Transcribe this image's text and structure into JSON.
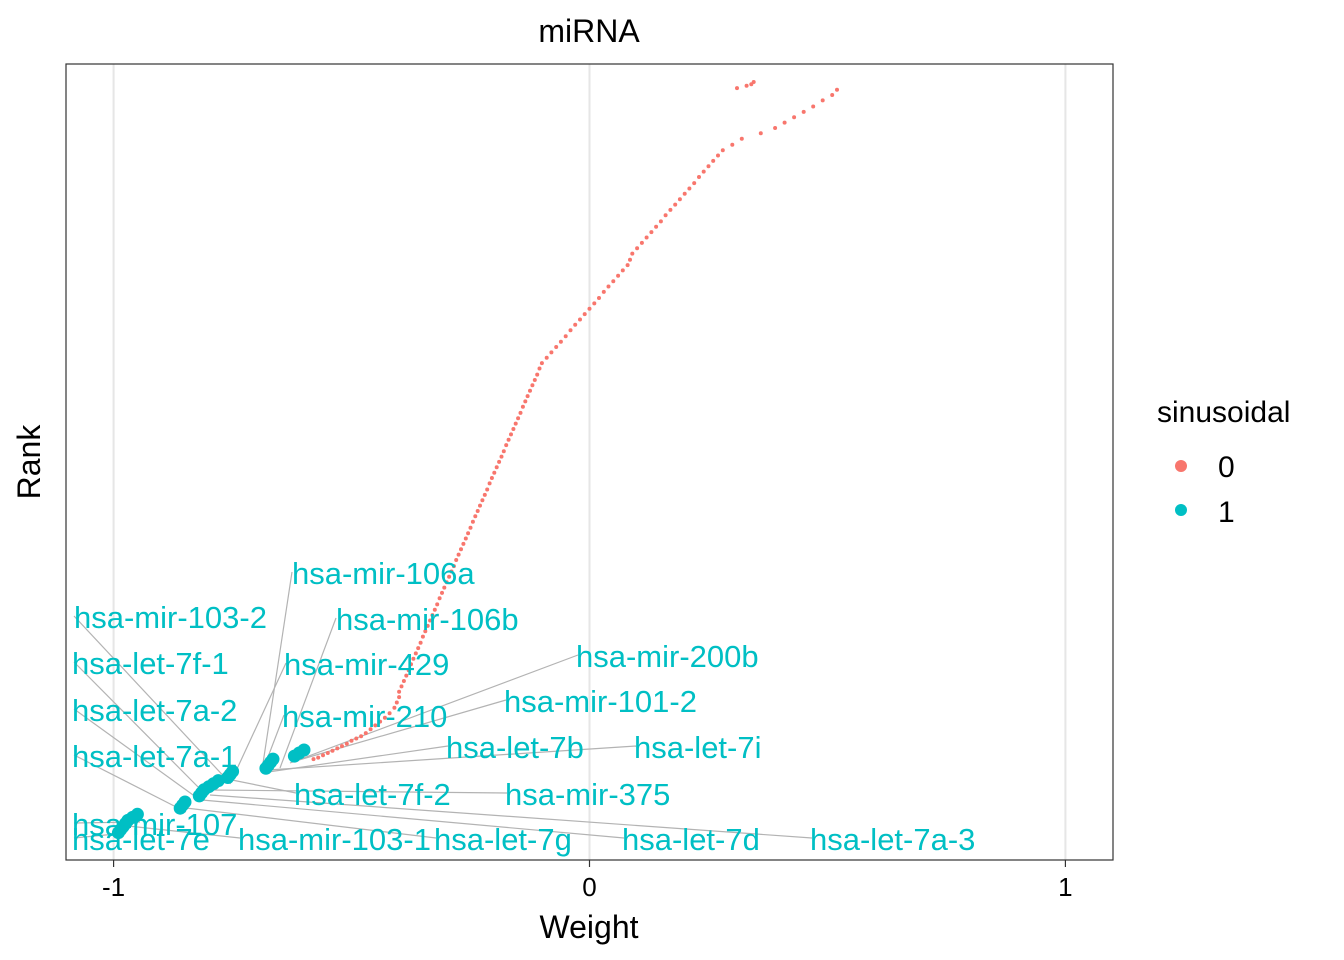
{
  "chart_data": {
    "type": "scatter",
    "title": "miRNA",
    "xlabel": "Weight",
    "ylabel": "Rank",
    "xlim": [
      -1.1,
      1.1
    ],
    "ylim": [
      0,
      1
    ],
    "xticks": [
      -1,
      0,
      1
    ],
    "xtick_labels": [
      "-1",
      "0",
      "1"
    ],
    "grid": "vertical major lines",
    "legend": {
      "title": "sinusoidal",
      "position": "right",
      "entries": [
        {
          "label": "0",
          "color": "#F8766D"
        },
        {
          "label": "1",
          "color": "#00BFC4"
        }
      ]
    },
    "series": [
      {
        "name": "0",
        "color": "#F8766D",
        "points": [
          [
            -0.58,
            0.116
          ],
          [
            -0.57,
            0.118
          ],
          [
            -0.56,
            0.121
          ],
          [
            -0.55,
            0.124
          ],
          [
            -0.54,
            0.127
          ],
          [
            -0.53,
            0.13
          ],
          [
            -0.52,
            0.133
          ],
          [
            -0.51,
            0.136
          ],
          [
            -0.5,
            0.14
          ],
          [
            -0.49,
            0.143
          ],
          [
            -0.48,
            0.146
          ],
          [
            -0.47,
            0.15
          ],
          [
            -0.46,
            0.155
          ],
          [
            -0.45,
            0.16
          ],
          [
            -0.44,
            0.165
          ],
          [
            -0.43,
            0.17
          ],
          [
            -0.42,
            0.176
          ],
          [
            -0.41,
            0.183
          ],
          [
            -0.405,
            0.19
          ],
          [
            -0.4,
            0.197
          ],
          [
            -0.4,
            0.204
          ],
          [
            -0.395,
            0.211
          ],
          [
            -0.39,
            0.218
          ],
          [
            -0.385,
            0.225
          ],
          [
            -0.38,
            0.232
          ],
          [
            -0.375,
            0.24
          ],
          [
            -0.37,
            0.247
          ],
          [
            -0.365,
            0.254
          ],
          [
            -0.36,
            0.261
          ],
          [
            -0.355,
            0.268
          ],
          [
            -0.35,
            0.276
          ],
          [
            -0.345,
            0.283
          ],
          [
            -0.34,
            0.29
          ],
          [
            -0.335,
            0.297
          ],
          [
            -0.33,
            0.304
          ],
          [
            -0.325,
            0.311
          ],
          [
            -0.32,
            0.318
          ],
          [
            -0.315,
            0.326
          ],
          [
            -0.31,
            0.333
          ],
          [
            -0.305,
            0.34
          ],
          [
            -0.3,
            0.347
          ],
          [
            -0.295,
            0.354
          ],
          [
            -0.29,
            0.361
          ],
          [
            -0.285,
            0.368
          ],
          [
            -0.28,
            0.376
          ],
          [
            -0.275,
            0.383
          ],
          [
            -0.27,
            0.39
          ],
          [
            -0.265,
            0.397
          ],
          [
            -0.26,
            0.404
          ],
          [
            -0.255,
            0.411
          ],
          [
            -0.25,
            0.418
          ],
          [
            -0.245,
            0.426
          ],
          [
            -0.24,
            0.433
          ],
          [
            -0.235,
            0.44
          ],
          [
            -0.23,
            0.447
          ],
          [
            -0.225,
            0.454
          ],
          [
            -0.22,
            0.461
          ],
          [
            -0.215,
            0.468
          ],
          [
            -0.21,
            0.476
          ],
          [
            -0.205,
            0.483
          ],
          [
            -0.2,
            0.49
          ],
          [
            -0.195,
            0.497
          ],
          [
            -0.19,
            0.504
          ],
          [
            -0.185,
            0.511
          ],
          [
            -0.18,
            0.518
          ],
          [
            -0.175,
            0.526
          ],
          [
            -0.17,
            0.533
          ],
          [
            -0.165,
            0.54
          ],
          [
            -0.16,
            0.547
          ],
          [
            -0.155,
            0.554
          ],
          [
            -0.15,
            0.561
          ],
          [
            -0.145,
            0.568
          ],
          [
            -0.14,
            0.576
          ],
          [
            -0.135,
            0.583
          ],
          [
            -0.13,
            0.59
          ],
          [
            -0.125,
            0.597
          ],
          [
            -0.12,
            0.604
          ],
          [
            -0.115,
            0.611
          ],
          [
            -0.11,
            0.618
          ],
          [
            -0.105,
            0.626
          ],
          [
            -0.1,
            0.633
          ],
          [
            -0.09,
            0.64
          ],
          [
            -0.08,
            0.647
          ],
          [
            -0.07,
            0.654
          ],
          [
            -0.06,
            0.661
          ],
          [
            -0.05,
            0.668
          ],
          [
            -0.04,
            0.676
          ],
          [
            -0.03,
            0.683
          ],
          [
            -0.02,
            0.69
          ],
          [
            -0.01,
            0.697
          ],
          [
            0.0,
            0.704
          ],
          [
            0.01,
            0.711
          ],
          [
            0.02,
            0.718
          ],
          [
            0.03,
            0.726
          ],
          [
            0.04,
            0.733
          ],
          [
            0.05,
            0.74
          ],
          [
            0.06,
            0.747
          ],
          [
            0.07,
            0.754
          ],
          [
            0.08,
            0.761
          ],
          [
            0.085,
            0.768
          ],
          [
            0.09,
            0.776
          ],
          [
            0.1,
            0.783
          ],
          [
            0.11,
            0.79
          ],
          [
            0.12,
            0.797
          ],
          [
            0.13,
            0.804
          ],
          [
            0.14,
            0.811
          ],
          [
            0.15,
            0.818
          ],
          [
            0.16,
            0.826
          ],
          [
            0.17,
            0.833
          ],
          [
            0.18,
            0.84
          ],
          [
            0.19,
            0.847
          ],
          [
            0.2,
            0.854
          ],
          [
            0.21,
            0.861
          ],
          [
            0.22,
            0.868
          ],
          [
            0.23,
            0.876
          ],
          [
            0.24,
            0.883
          ],
          [
            0.25,
            0.89
          ],
          [
            0.26,
            0.897
          ],
          [
            0.27,
            0.904
          ],
          [
            0.28,
            0.911
          ],
          [
            0.3,
            0.918
          ],
          [
            0.32,
            0.926
          ],
          [
            0.36,
            0.933
          ],
          [
            0.39,
            0.94
          ],
          [
            0.41,
            0.947
          ],
          [
            0.43,
            0.954
          ],
          [
            0.45,
            0.961
          ],
          [
            0.47,
            0.968
          ],
          [
            0.49,
            0.976
          ],
          [
            0.51,
            0.983
          ],
          [
            0.52,
            0.99
          ],
          [
            0.31,
            0.992
          ],
          [
            0.33,
            0.995
          ],
          [
            0.34,
            0.997
          ],
          [
            0.345,
            1.0
          ]
        ]
      },
      {
        "name": "1",
        "color": "#00BFC4",
        "points": [
          [
            -0.99,
            0.02
          ],
          [
            -0.985,
            0.024
          ],
          [
            -0.98,
            0.028
          ],
          [
            -0.975,
            0.032
          ],
          [
            -0.97,
            0.036
          ],
          [
            -0.96,
            0.04
          ],
          [
            -0.95,
            0.044
          ],
          [
            -0.86,
            0.052
          ],
          [
            -0.855,
            0.056
          ],
          [
            -0.85,
            0.06
          ],
          [
            -0.82,
            0.068
          ],
          [
            -0.815,
            0.072
          ],
          [
            -0.81,
            0.076
          ],
          [
            -0.8,
            0.08
          ],
          [
            -0.79,
            0.084
          ],
          [
            -0.78,
            0.088
          ],
          [
            -0.76,
            0.092
          ],
          [
            -0.755,
            0.096
          ],
          [
            -0.75,
            0.1
          ],
          [
            -0.68,
            0.104
          ],
          [
            -0.675,
            0.108
          ],
          [
            -0.67,
            0.112
          ],
          [
            -0.665,
            0.116
          ],
          [
            -0.62,
            0.12
          ],
          [
            -0.61,
            0.124
          ],
          [
            -0.6,
            0.128
          ]
        ]
      }
    ],
    "annotations": [
      "hsa-mir-106a",
      "hsa-mir-103-2",
      "hsa-mir-106b",
      "hsa-mir-200b",
      "hsa-let-7f-1",
      "hsa-mir-429",
      "hsa-mir-101-2",
      "hsa-let-7a-2",
      "hsa-mir-210",
      "hsa-let-7b",
      "hsa-let-7i",
      "hsa-let-7a-1",
      "hsa-let-7f-2",
      "hsa-mir-375",
      "hsa-mir-107",
      "hsa-let-7e",
      "hsa-mir-103-1",
      "hsa-let-7g",
      "hsa-let-7d",
      "hsa-let-7a-3"
    ]
  }
}
